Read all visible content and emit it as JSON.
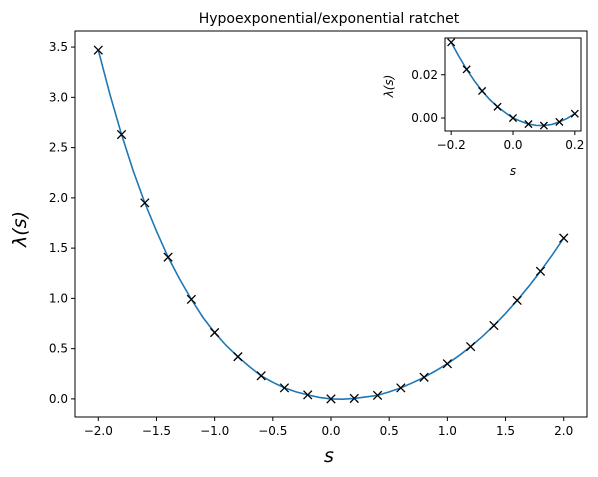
{
  "chart_data": [
    {
      "type": "line",
      "title": "Hypoexponential/exponential ratchet",
      "xlabel": "s",
      "ylabel": "λ(s)",
      "xlim": [
        -2.2,
        2.2
      ],
      "ylim": [
        -0.18,
        3.66
      ],
      "xticks": [
        -2.0,
        -1.5,
        -1.0,
        -0.5,
        0.0,
        0.5,
        1.0,
        1.5,
        2.0
      ],
      "xtick_labels": [
        "−2.0",
        "−1.5",
        "−1.0",
        "−0.5",
        "0.0",
        "0.5",
        "1.0",
        "1.5",
        "2.0"
      ],
      "yticks": [
        0.0,
        0.5,
        1.0,
        1.5,
        2.0,
        2.5,
        3.0,
        3.5
      ],
      "ytick_labels": [
        "0.0",
        "0.5",
        "1.0",
        "1.5",
        "2.0",
        "2.5",
        "3.0",
        "3.5"
      ],
      "grid": false,
      "series": [
        {
          "style": "curve",
          "color": "#1f77b4",
          "x": [
            -2.0,
            -1.9,
            -1.8,
            -1.7,
            -1.6,
            -1.5,
            -1.4,
            -1.3,
            -1.2,
            -1.1,
            -1.0,
            -0.9,
            -0.8,
            -0.7,
            -0.6,
            -0.5,
            -0.4,
            -0.3,
            -0.2,
            -0.1,
            0.0,
            0.1,
            0.2,
            0.3,
            0.4,
            0.5,
            0.6,
            0.7,
            0.8,
            0.9,
            1.0,
            1.1,
            1.2,
            1.3,
            1.4,
            1.5,
            1.6,
            1.7,
            1.8,
            1.9,
            2.0
          ],
          "y": [
            3.47,
            3.03,
            2.63,
            2.27,
            1.95,
            1.67,
            1.41,
            1.19,
            0.99,
            0.81,
            0.66,
            0.53,
            0.42,
            0.32,
            0.23,
            0.165,
            0.11,
            0.07,
            0.04,
            0.015,
            0.0,
            -0.003,
            0.005,
            0.02,
            0.035,
            0.07,
            0.11,
            0.16,
            0.215,
            0.28,
            0.35,
            0.43,
            0.52,
            0.62,
            0.73,
            0.85,
            0.98,
            1.12,
            1.27,
            1.43,
            1.6
          ]
        },
        {
          "style": "x-markers",
          "color": "#000000",
          "x": [
            -2.0,
            -1.8,
            -1.6,
            -1.4,
            -1.2,
            -1.0,
            -0.8,
            -0.6,
            -0.4,
            -0.2,
            0.0,
            0.2,
            0.4,
            0.6,
            0.8,
            1.0,
            1.2,
            1.4,
            1.6,
            1.8,
            2.0
          ],
          "y": [
            3.47,
            2.63,
            1.95,
            1.41,
            0.99,
            0.66,
            0.42,
            0.23,
            0.11,
            0.04,
            0.0,
            0.005,
            0.035,
            0.11,
            0.215,
            0.35,
            0.52,
            0.73,
            0.98,
            1.27,
            1.6
          ]
        }
      ]
    },
    {
      "type": "line",
      "role": "inset",
      "title": "",
      "xlabel": "s",
      "ylabel": "λ(s)",
      "xlim": [
        -0.22,
        0.22
      ],
      "ylim": [
        -0.006,
        0.037
      ],
      "xticks": [
        -0.2,
        0.0,
        0.2
      ],
      "xtick_labels": [
        "−0.2",
        "0.0",
        "0.2"
      ],
      "yticks": [
        0.0,
        0.02
      ],
      "ytick_labels": [
        "0.00",
        "0.02"
      ],
      "grid": false,
      "series": [
        {
          "style": "curve",
          "color": "#1f77b4",
          "x": [
            -0.2,
            -0.175,
            -0.15,
            -0.125,
            -0.1,
            -0.075,
            -0.05,
            -0.025,
            0.0,
            0.025,
            0.05,
            0.075,
            0.1,
            0.125,
            0.15,
            0.175,
            0.2
          ],
          "y": [
            0.035,
            0.0285,
            0.0225,
            0.0172,
            0.0125,
            0.0085,
            0.0052,
            0.0025,
            0.0,
            -0.0015,
            -0.0028,
            -0.0034,
            -0.0035,
            -0.003,
            -0.0018,
            -0.0002,
            0.002
          ]
        },
        {
          "style": "x-markers",
          "color": "#000000",
          "x": [
            -0.2,
            -0.15,
            -0.1,
            -0.05,
            0.0,
            0.05,
            0.1,
            0.15,
            0.2
          ],
          "y": [
            0.035,
            0.0225,
            0.0125,
            0.0052,
            0.0,
            -0.0028,
            -0.0035,
            -0.0018,
            0.002
          ]
        }
      ]
    }
  ]
}
